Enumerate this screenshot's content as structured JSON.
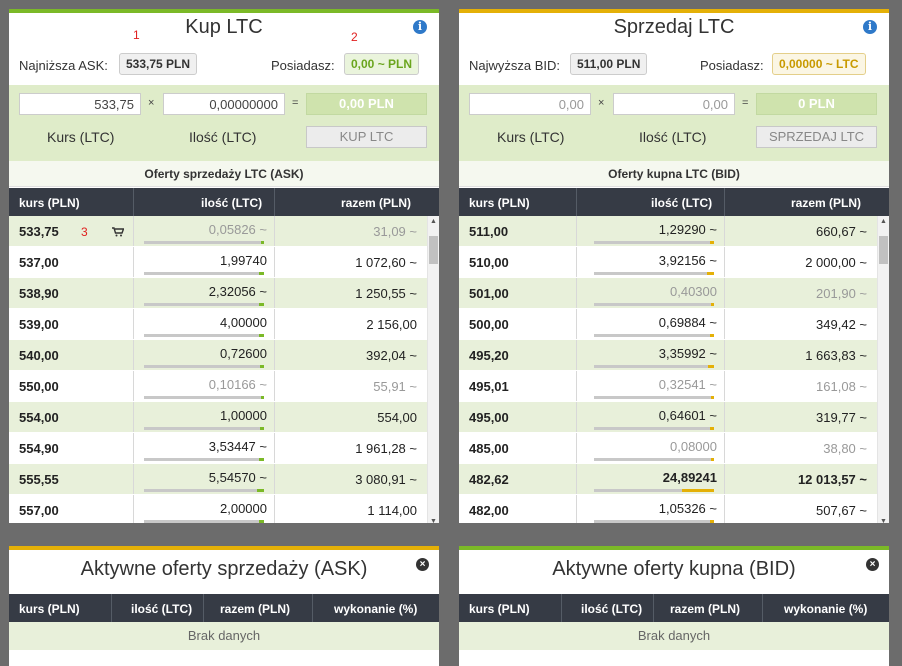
{
  "buy": {
    "title": "Kup LTC",
    "marker1": "1",
    "marker2": "2",
    "marker3": "3",
    "lowest_label": "Najniższa ASK:",
    "lowest_value": "533,75 PLN",
    "have_label": "Posiadasz:",
    "have_value": "0,00 ~ PLN",
    "rate_input": "533,75",
    "qty_input": "0,00000000",
    "times": "×",
    "equals": "=",
    "total": "0,00 PLN",
    "rate_label": "Kurs (LTC)",
    "qty_label": "Ilość (LTC)",
    "button": "KUP LTC",
    "offers_title": "Oferty sprzedaży LTC (ASK)",
    "headers": [
      "kurs (PLN)",
      "ilość (LTC)",
      "razem (PLN)"
    ],
    "rows": [
      {
        "rate": "533,75",
        "qty": "0,05826 ~",
        "total": "31,09 ~",
        "fill": 0.02,
        "faded": true
      },
      {
        "rate": "537,00",
        "qty": "1,99740",
        "total": "1 072,60 ~",
        "fill": 0.04,
        "faded": false
      },
      {
        "rate": "538,90",
        "qty": "2,32056 ~",
        "total": "1 250,55 ~",
        "fill": 0.04,
        "faded": false
      },
      {
        "rate": "539,00",
        "qty": "4,00000",
        "total": "2 156,00",
        "fill": 0.04,
        "faded": false
      },
      {
        "rate": "540,00",
        "qty": "0,72600",
        "total": "392,04 ~",
        "fill": 0.03,
        "faded": false
      },
      {
        "rate": "550,00",
        "qty": "0,10166 ~",
        "total": "55,91 ~",
        "fill": 0.02,
        "faded": true
      },
      {
        "rate": "554,00",
        "qty": "1,00000",
        "total": "554,00",
        "fill": 0.03,
        "faded": false
      },
      {
        "rate": "554,90",
        "qty": "3,53447 ~",
        "total": "1 961,28 ~",
        "fill": 0.04,
        "faded": false
      },
      {
        "rate": "555,55",
        "qty": "5,54570 ~",
        "total": "3 080,91 ~",
        "fill": 0.06,
        "faded": false
      },
      {
        "rate": "557,00",
        "qty": "2,00000",
        "total": "1 114,00",
        "fill": 0.04,
        "faded": false
      }
    ]
  },
  "sell": {
    "title": "Sprzedaj LTC",
    "highest_label": "Najwyższa BID:",
    "highest_value": "511,00 PLN",
    "have_label": "Posiadasz:",
    "have_value": "0,00000 ~ LTC",
    "rate_input": "0,00",
    "qty_input": "0,00",
    "times": "×",
    "equals": "=",
    "total": "0 PLN",
    "rate_label": "Kurs (LTC)",
    "qty_label": "Ilość (LTC)",
    "button": "SPRZEDAJ LTC",
    "offers_title": "Oferty kupna LTC (BID)",
    "headers": [
      "kurs (PLN)",
      "ilość (LTC)",
      "razem (PLN)"
    ],
    "rows": [
      {
        "rate": "511,00",
        "qty": "1,29290 ~",
        "total": "660,67 ~",
        "fill": 0.03,
        "faded": false,
        "bold": false
      },
      {
        "rate": "510,00",
        "qty": "3,92156 ~",
        "total": "2 000,00 ~",
        "fill": 0.06,
        "faded": false,
        "bold": false
      },
      {
        "rate": "501,00",
        "qty": "0,40300",
        "total": "201,90 ~",
        "fill": 0.02,
        "faded": true,
        "bold": false
      },
      {
        "rate": "500,00",
        "qty": "0,69884 ~",
        "total": "349,42 ~",
        "fill": 0.03,
        "faded": false,
        "bold": false
      },
      {
        "rate": "495,20",
        "qty": "3,35992 ~",
        "total": "1 663,83 ~",
        "fill": 0.05,
        "faded": false,
        "bold": false
      },
      {
        "rate": "495,01",
        "qty": "0,32541 ~",
        "total": "161,08 ~",
        "fill": 0.02,
        "faded": true,
        "bold": false
      },
      {
        "rate": "495,00",
        "qty": "0,64601 ~",
        "total": "319,77 ~",
        "fill": 0.03,
        "faded": false,
        "bold": false
      },
      {
        "rate": "485,00",
        "qty": "0,08000",
        "total": "38,80 ~",
        "fill": 0.01,
        "faded": true,
        "bold": false
      },
      {
        "rate": "482,62",
        "qty": "24,89241",
        "total": "12 013,57 ~",
        "fill": 0.27,
        "faded": false,
        "bold": true
      },
      {
        "rate": "482,00",
        "qty": "1,05326 ~",
        "total": "507,67 ~",
        "fill": 0.03,
        "faded": false,
        "bold": false
      }
    ]
  },
  "active_sell": {
    "title": "Aktywne oferty sprzedaży (ASK)",
    "headers": [
      "kurs (PLN)",
      "ilość (LTC)",
      "razem (PLN)",
      "wykonanie (%)"
    ],
    "empty": "Brak danych"
  },
  "active_buy": {
    "title": "Aktywne oferty kupna (BID)",
    "headers": [
      "kurs (PLN)",
      "ilość (LTC)",
      "razem (PLN)",
      "wykonanie (%)"
    ],
    "empty": "Brak danych"
  },
  "colors": {
    "green": "#7bb927",
    "gold": "#e4b007",
    "header": "#363b45"
  },
  "icons": {
    "info": "info-icon",
    "cart": "cart-icon",
    "close": "close-icon"
  }
}
